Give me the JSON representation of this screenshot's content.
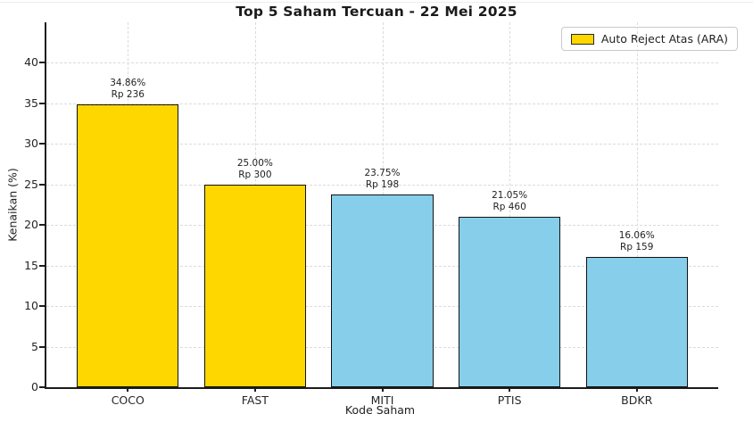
{
  "chart_data": {
    "type": "bar",
    "title": "Top 5 Saham Tercuan - 22 Mei 2025",
    "xlabel": "Kode Saham",
    "ylabel": "Kenaikan (%)",
    "ylim": [
      0,
      45
    ],
    "yticks": [
      0,
      5,
      10,
      15,
      20,
      25,
      30,
      35,
      40
    ],
    "grid": "both-dashed",
    "legend": {
      "label": "Auto Reject Atas (ARA)",
      "swatch_color": "#FFD700",
      "position": "upper-right"
    },
    "categories": [
      "COCO",
      "FAST",
      "MITI",
      "PTIS",
      "BDKR"
    ],
    "values": [
      34.86,
      25.0,
      23.75,
      21.05,
      16.06
    ],
    "bars": [
      {
        "code": "COCO",
        "pct": 34.86,
        "pct_label": "34.86%",
        "price_label": "Rp 236",
        "ara": true,
        "color": "#FFD700"
      },
      {
        "code": "FAST",
        "pct": 25.0,
        "pct_label": "25.00%",
        "price_label": "Rp 300",
        "ara": true,
        "color": "#FFD700"
      },
      {
        "code": "MITI",
        "pct": 23.75,
        "pct_label": "23.75%",
        "price_label": "Rp 198",
        "ara": false,
        "color": "#87CEEB"
      },
      {
        "code": "PTIS",
        "pct": 21.05,
        "pct_label": "21.05%",
        "price_label": "Rp 460",
        "ara": false,
        "color": "#87CEEB"
      },
      {
        "code": "BDKR",
        "pct": 16.06,
        "pct_label": "16.06%",
        "price_label": "Rp 159",
        "ara": false,
        "color": "#87CEEB"
      }
    ],
    "colors": {
      "ara": "#FFD700",
      "non_ara": "#87CEEB",
      "bar_edge": "#111111",
      "grid": "#dbdbdb",
      "text": "#262626"
    }
  }
}
